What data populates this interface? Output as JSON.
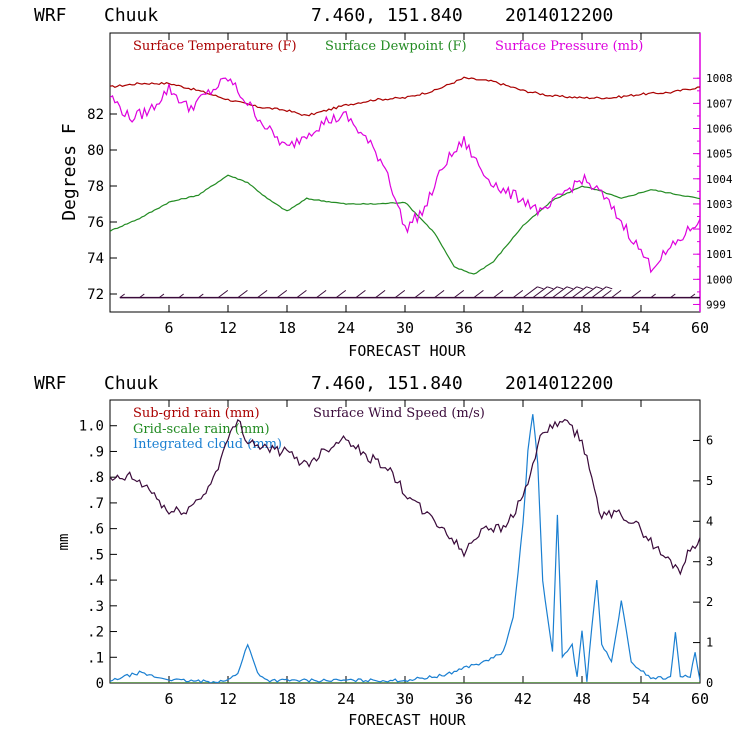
{
  "chart_data": [
    {
      "type": "line",
      "header": {
        "model": "WRF",
        "station": "Chuuk",
        "coords": "7.460, 151.840",
        "init_time": "2014012200"
      },
      "xlabel": "FORECAST HOUR",
      "ylabel": "Degrees F",
      "xlim": [
        0,
        60
      ],
      "xticks": [
        "6",
        "12",
        "18",
        "24",
        "30",
        "36",
        "42",
        "48",
        "54",
        "60"
      ],
      "ylim_left": [
        71,
        86.5
      ],
      "yticks_left": [
        "72",
        "74",
        "76",
        "78",
        "80",
        "82"
      ],
      "ylim_right": [
        998.7,
        1009.8
      ],
      "yticks_right": [
        "999",
        "1000",
        "1001",
        "1002",
        "1003",
        "1004",
        "1005",
        "1006",
        "1007",
        "1008"
      ],
      "legend_position": "top",
      "colors": {
        "temperature": "#aa0000",
        "dewpoint": "#228b22",
        "pressure": "#dd00dd",
        "wind": "#3a0a3a"
      },
      "series": [
        {
          "name": "Surface Temperature (F)",
          "axis": "left",
          "x": [
            0,
            3,
            6,
            9,
            12,
            15,
            18,
            20,
            24,
            27,
            30,
            33,
            36,
            39,
            42,
            45,
            48,
            51,
            54,
            57,
            60
          ],
          "y": [
            83.5,
            83.7,
            83.7,
            83.3,
            82.8,
            82.4,
            82.2,
            81.9,
            82.5,
            82.8,
            82.9,
            83.3,
            84.0,
            83.8,
            83.3,
            83.0,
            82.9,
            82.9,
            83.1,
            83.2,
            83.5
          ]
        },
        {
          "name": "Surface Dewpoint (F)",
          "axis": "left",
          "x": [
            0,
            3,
            6,
            9,
            12,
            14,
            16,
            18,
            20,
            24,
            27,
            30,
            33,
            35,
            37,
            39,
            42,
            45,
            48,
            50,
            52,
            55,
            58,
            60
          ],
          "y": [
            75.5,
            76.2,
            77.1,
            77.5,
            78.6,
            78.2,
            77.3,
            76.6,
            77.3,
            77.0,
            77.0,
            77.1,
            75.4,
            73.5,
            73.1,
            73.8,
            75.8,
            77.2,
            78.0,
            77.7,
            77.3,
            77.8,
            77.5,
            77.3
          ]
        },
        {
          "name": "Surface Pressure (mb)",
          "axis": "right",
          "x": [
            0,
            2,
            4,
            6,
            8,
            10,
            12,
            14,
            16,
            18,
            20,
            22,
            24,
            26,
            28,
            30,
            32,
            34,
            36,
            38,
            40,
            42,
            44,
            46,
            48,
            50,
            52,
            54,
            55,
            57,
            60
          ],
          "y": [
            1007.3,
            1006.4,
            1006.7,
            1007.6,
            1006.8,
            1007.4,
            1008.0,
            1007.0,
            1006.0,
            1005.2,
            1005.8,
            1006.3,
            1006.5,
            1005.6,
            1004.5,
            1002.0,
            1002.8,
            1004.6,
            1005.5,
            1004.2,
            1003.5,
            1003.2,
            1002.6,
            1003.4,
            1004.0,
            1003.4,
            1002.3,
            1001.1,
            1000.5,
            1001.2,
            1002.4
          ]
        }
      ],
      "wind_barbs": {
        "y_level": 71.8,
        "x": [
          1,
          3,
          5,
          7,
          9,
          11,
          13,
          15,
          17,
          19,
          21,
          23,
          25,
          27,
          29,
          31,
          33,
          35,
          37,
          39,
          41,
          42,
          43,
          44,
          45,
          46,
          47,
          48,
          49,
          50,
          51,
          53,
          55,
          57,
          59
        ],
        "strength": [
          0,
          0,
          0,
          0,
          0,
          1,
          1,
          1,
          1,
          1,
          1,
          1,
          1,
          1,
          1,
          1,
          1,
          1,
          1,
          1,
          1,
          2,
          2,
          2,
          2,
          2,
          2,
          2,
          2,
          1,
          1,
          1,
          0,
          0,
          0
        ]
      }
    },
    {
      "type": "line",
      "header": {
        "model": "WRF",
        "station": "Chuuk",
        "coords": "7.460, 151.840",
        "init_time": "2014012200"
      },
      "xlabel": "FORECAST HOUR",
      "ylabel": "mm",
      "xlim": [
        0,
        60
      ],
      "xticks": [
        "6",
        "12",
        "18",
        "24",
        "30",
        "36",
        "42",
        "48",
        "54",
        "60"
      ],
      "ylim_left": [
        0,
        1.1
      ],
      "yticks_left": [
        "0",
        ".1",
        ".2",
        ".3",
        ".4",
        ".5",
        ".6",
        ".7",
        ".8",
        ".9",
        "1.0"
      ],
      "ylim_right": [
        0,
        7
      ],
      "yticks_right": [
        "0",
        "1",
        "2",
        "3",
        "4",
        "5",
        "6"
      ],
      "legend_position": "top",
      "colors": {
        "subgrid": "#aa0000",
        "gridscale": "#228b22",
        "cloud": "#1a7fd1",
        "wind": "#3a0a3a"
      },
      "series": [
        {
          "name": "Sub-grid rain (mm)",
          "axis": "left",
          "x": [
            0,
            60
          ],
          "y": [
            0,
            0
          ]
        },
        {
          "name": "Grid-scale rain (mm)",
          "axis": "left",
          "x": [
            0,
            60
          ],
          "y": [
            0,
            0
          ]
        },
        {
          "name": "Integrated cloud (mm)",
          "axis": "left",
          "x": [
            0,
            1,
            3,
            5,
            7,
            10,
            12,
            13,
            14,
            15,
            16,
            18,
            20,
            24,
            30,
            34,
            36,
            38,
            40,
            41,
            42,
            42.5,
            43,
            43.5,
            44,
            45,
            45.5,
            46,
            47,
            47.5,
            48,
            48.5,
            49,
            49.5,
            50,
            51,
            52,
            53,
            55,
            57,
            57.5,
            58,
            59,
            59.5,
            60
          ],
          "y": [
            0.005,
            0.02,
            0.04,
            0.02,
            0.01,
            0.005,
            0.01,
            0.04,
            0.15,
            0.04,
            0.01,
            0.01,
            0.01,
            0.01,
            0.01,
            0.03,
            0.06,
            0.08,
            0.12,
            0.25,
            0.62,
            0.9,
            1.05,
            0.85,
            0.4,
            0.12,
            0.65,
            0.1,
            0.15,
            0.02,
            0.2,
            0.01,
            0.22,
            0.4,
            0.15,
            0.08,
            0.32,
            0.08,
            0.02,
            0.02,
            0.2,
            0.03,
            0.02,
            0.12,
            0.01
          ]
        },
        {
          "name": "Surface Wind Speed (m/s)",
          "axis": "right",
          "x": [
            0,
            2,
            4,
            6,
            8,
            10,
            12,
            13,
            14,
            16,
            18,
            20,
            22,
            24,
            26,
            28,
            30,
            32,
            34,
            36,
            38,
            40,
            42,
            44,
            45,
            46,
            48,
            50,
            52,
            54,
            56,
            58,
            59,
            60
          ],
          "y": [
            5.0,
            5.1,
            4.8,
            4.2,
            4.3,
            4.8,
            6.0,
            6.5,
            6.0,
            5.8,
            5.7,
            5.4,
            5.8,
            6.1,
            5.6,
            5.4,
            4.7,
            4.2,
            3.8,
            3.2,
            3.9,
            3.8,
            4.6,
            6.2,
            6.3,
            6.5,
            6.0,
            4.1,
            4.2,
            3.8,
            3.2,
            2.8,
            3.3,
            3.6
          ]
        }
      ]
    }
  ]
}
